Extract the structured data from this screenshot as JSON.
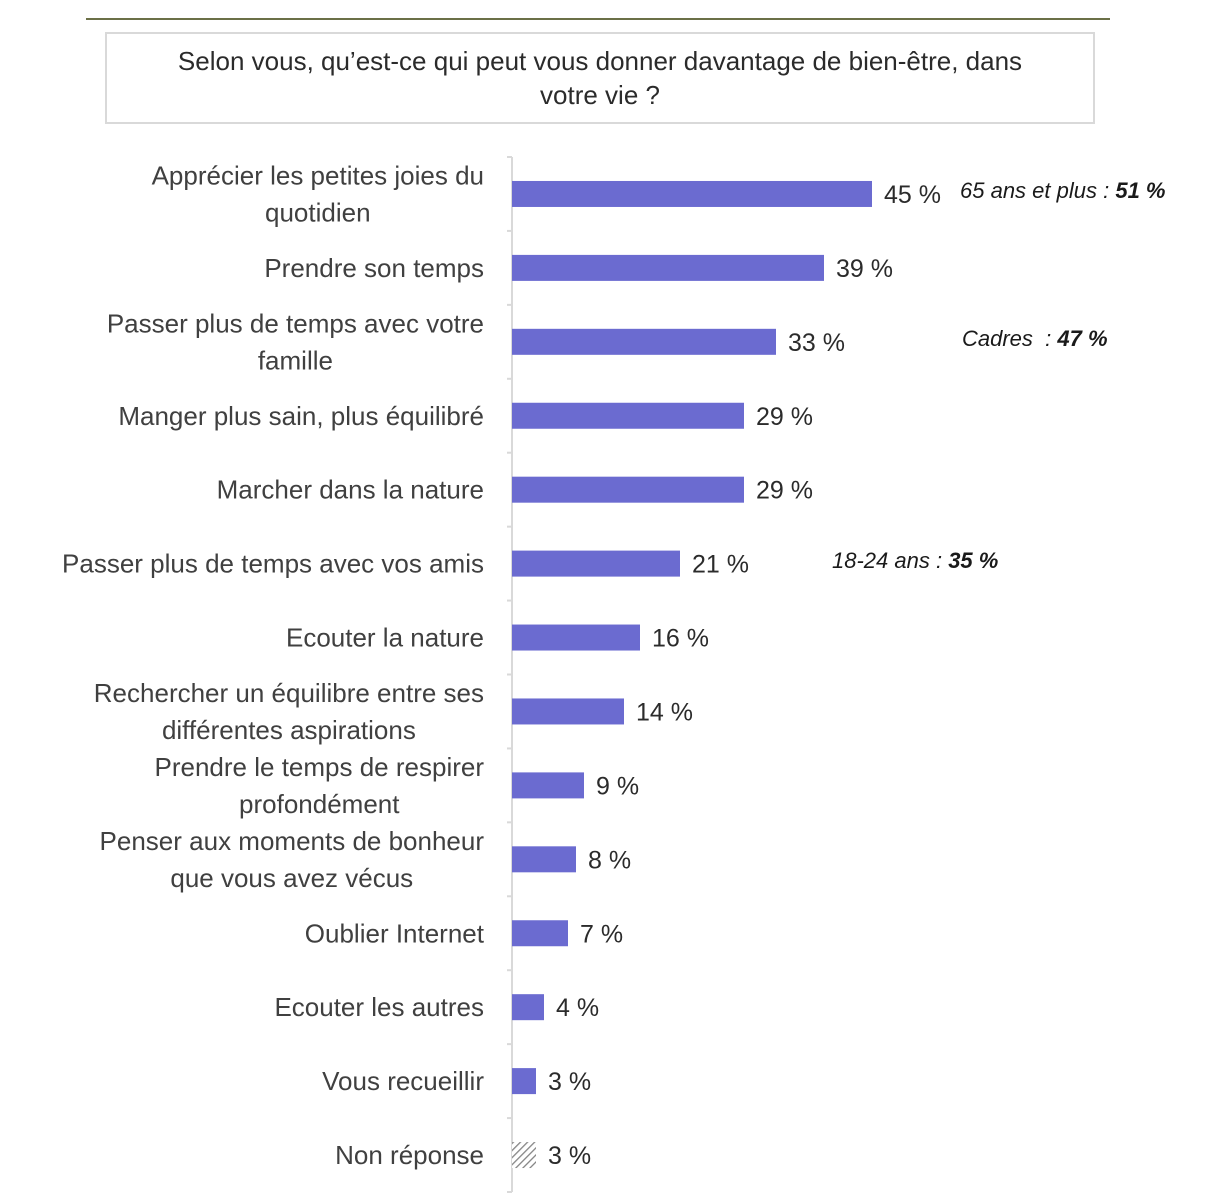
{
  "title": "Selon vous, qu’est-ce qui peut vous donner davantage de bien-être, dans votre vie ?",
  "colors": {
    "bar": "#6b6bd0",
    "axis": "#d9d9d9",
    "rule": "#6b7047"
  },
  "chart_data": {
    "type": "bar",
    "orientation": "horizontal",
    "title": "Selon vous, qu’est-ce qui peut vous donner davantage de bien-être, dans votre vie ?",
    "xlim": [
      0,
      100
    ],
    "grid": false,
    "categories": [
      "Apprécier les petites joies du quotidien",
      "Prendre son temps",
      "Passer plus de temps avec votre famille",
      "Manger plus sain, plus équilibré",
      "Marcher dans la nature",
      "Passer plus de temps avec vos amis",
      "Ecouter la nature",
      "Rechercher un équilibre entre ses différentes aspirations",
      "Prendre le temps de respirer profondément",
      "Penser aux moments de bonheur que vous avez vécus",
      "Oublier Internet",
      "Ecouter les autres",
      "Vous recueillir",
      "Non réponse"
    ],
    "label_lines": [
      [
        "Apprécier les petites joies du",
        "quotidien"
      ],
      [
        "Prendre son temps"
      ],
      [
        "Passer plus de temps avec votre",
        "famille"
      ],
      [
        "Manger plus sain, plus équilibré"
      ],
      [
        "Marcher dans la nature"
      ],
      [
        "Passer plus de temps avec vos amis"
      ],
      [
        "Ecouter la nature"
      ],
      [
        "Rechercher un équilibre entre ses",
        "différentes aspirations"
      ],
      [
        "Prendre le temps de respirer",
        "profondément"
      ],
      [
        "Penser aux moments de bonheur",
        "que vous avez vécus"
      ],
      [
        "Oublier Internet"
      ],
      [
        "Ecouter les autres"
      ],
      [
        "Vous recueillir"
      ],
      [
        "Non réponse"
      ]
    ],
    "values": [
      45,
      39,
      33,
      29,
      29,
      21,
      16,
      14,
      9,
      8,
      7,
      4,
      3,
      3
    ],
    "value_labels": [
      "45 %",
      "39 %",
      "33 %",
      "29 %",
      "29 %",
      "21 %",
      "16 %",
      "14 %",
      "9 %",
      "8 %",
      "7 %",
      "4 %",
      "3 %",
      "3 %"
    ],
    "hatched": [
      false,
      false,
      false,
      false,
      false,
      false,
      false,
      false,
      false,
      false,
      false,
      false,
      false,
      true
    ]
  },
  "annotations": [
    {
      "row": 0,
      "label": "65 ans et plus : ",
      "value": "51 %"
    },
    {
      "row": 2,
      "label": "Cadres  : ",
      "value": "47 %"
    },
    {
      "row": 5,
      "label": "18-24 ans : ",
      "value": "35 %"
    }
  ]
}
